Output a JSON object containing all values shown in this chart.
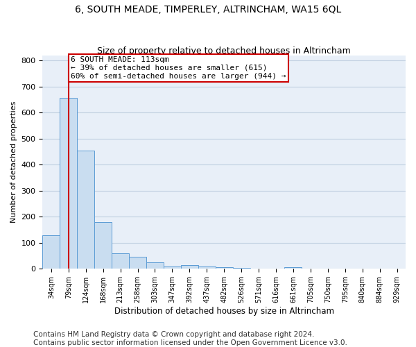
{
  "title": "6, SOUTH MEADE, TIMPERLEY, ALTRINCHAM, WA15 6QL",
  "subtitle": "Size of property relative to detached houses in Altrincham",
  "xlabel": "Distribution of detached houses by size in Altrincham",
  "ylabel": "Number of detached properties",
  "footer_lines": [
    "Contains HM Land Registry data © Crown copyright and database right 2024.",
    "Contains public sector information licensed under the Open Government Licence v3.0."
  ],
  "bin_labels": [
    "34sqm",
    "79sqm",
    "124sqm",
    "168sqm",
    "213sqm",
    "258sqm",
    "303sqm",
    "347sqm",
    "392sqm",
    "437sqm",
    "482sqm",
    "526sqm",
    "571sqm",
    "616sqm",
    "661sqm",
    "705sqm",
    "750sqm",
    "795sqm",
    "840sqm",
    "884sqm",
    "929sqm"
  ],
  "bar_heights": [
    128,
    655,
    455,
    180,
    60,
    47,
    25,
    10,
    13,
    10,
    7,
    4,
    0,
    0,
    7,
    0,
    0,
    0,
    0,
    0,
    0
  ],
  "bar_color": "#c9ddf0",
  "bar_edge_color": "#5b9bd5",
  "annotation_text": "6 SOUTH MEADE: 113sqm\n← 39% of detached houses are smaller (615)\n60% of semi-detached houses are larger (944) →",
  "annotation_box_edge_color": "#cc0000",
  "red_line_x": 1.52,
  "ylim": [
    0,
    820
  ],
  "ax_facecolor": "#e8eff8",
  "background_color": "#ffffff",
  "grid_color": "#c0cfe0",
  "title_fontsize": 10,
  "subtitle_fontsize": 9,
  "annotation_fontsize": 8,
  "footer_fontsize": 7.5
}
